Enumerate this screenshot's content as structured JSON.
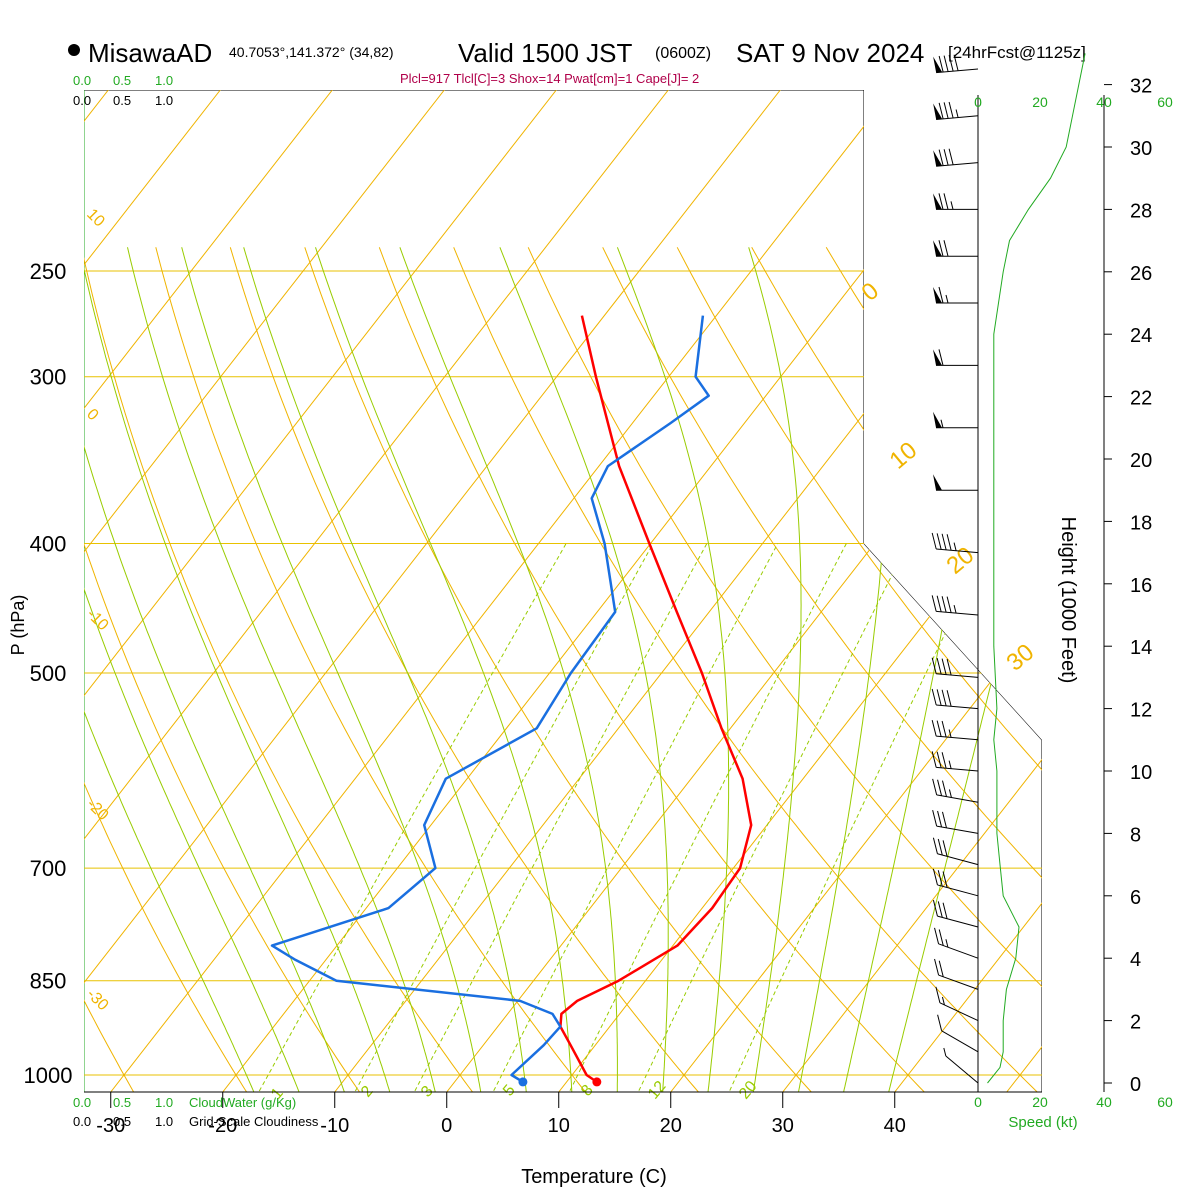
{
  "header": {
    "station": "MisawaAD",
    "coords": "40.7053°,141.372° (34,82)",
    "valid": "Valid 1500 JST",
    "zulu": "(0600Z)",
    "date": "SAT 9 Nov 2024",
    "fcst": "[24hrFcst@1125z]",
    "indices": "Plcl=917 Tlcl[C]=3 Shox=14 Pwat[cm]=1 Cape[J]= 2"
  },
  "colors": {
    "temp": "#ff0000",
    "dew": "#1a6fe0",
    "isotherm": "#f0b400",
    "dry_adiabat": "#f0b400",
    "moist_adiabat": "#99cc00",
    "mixing_ratio": "#99cc00",
    "wind_profile": "#22aa22",
    "isobar": "#e8c200",
    "barb": "#000000"
  },
  "scales": {
    "cloud_top": [
      "0.0",
      "0.5",
      "1.0"
    ],
    "cloud_top_black": [
      "0.0",
      "0.5",
      "1.0"
    ],
    "cloudwater_label": "CloudWater (g/Kg)",
    "gridscale_label": "Grid-Scale Cloudiness",
    "speed_label": "Speed (kt)",
    "speed_ticks": [
      "0",
      "20",
      "40",
      "60"
    ]
  },
  "chart_data": {
    "type": "line",
    "title": "MisawaAD Valid 1500 JST (0600Z) SAT 9 Nov 2024",
    "xlabel": "Temperature (C)",
    "ylabel": "P (hPa)",
    "y2label": "Height (1000 Feet)",
    "x_ticks": [
      -30,
      -20,
      -10,
      0,
      10,
      20,
      30,
      40
    ],
    "pressure_ticks": [
      250,
      300,
      400,
      500,
      700,
      850,
      1000
    ],
    "height_ticks": [
      0,
      2,
      4,
      6,
      8,
      10,
      12,
      14,
      16,
      18,
      20,
      22,
      24,
      26,
      28,
      30,
      32
    ],
    "isotherm_labels": [
      "10",
      "0",
      "-10",
      "-20",
      "-30"
    ],
    "dry_adiabat_labels": [
      "0",
      "10",
      "20",
      "30"
    ],
    "mixing_ratio_labels": [
      "1",
      "2",
      "3",
      "5",
      "8",
      "12",
      "20"
    ],
    "series": [
      {
        "name": "Temperature",
        "points": [
          [
            1012,
            12.7
          ],
          [
            1000,
            11.3
          ],
          [
            950,
            7.8
          ],
          [
            920,
            5.6
          ],
          [
            900,
            4.8
          ],
          [
            880,
            5.3
          ],
          [
            850,
            7.6
          ],
          [
            800,
            10.4
          ],
          [
            750,
            10.9
          ],
          [
            700,
            10.6
          ],
          [
            650,
            8.6
          ],
          [
            600,
            4.6
          ],
          [
            550,
            -0.8
          ],
          [
            500,
            -6.4
          ],
          [
            450,
            -12.9
          ],
          [
            400,
            -20.1
          ],
          [
            350,
            -28.2
          ],
          [
            300,
            -36.5
          ],
          [
            270,
            -42.0
          ]
        ]
      },
      {
        "name": "Dewpoint",
        "points": [
          [
            1012,
            6.1
          ],
          [
            1000,
            4.6
          ],
          [
            950,
            5.4
          ],
          [
            920,
            5.6
          ],
          [
            900,
            4.0
          ],
          [
            880,
            0.2
          ],
          [
            850,
            -17.6
          ],
          [
            820,
            -22.7
          ],
          [
            800,
            -25.8
          ],
          [
            750,
            -18.0
          ],
          [
            700,
            -16.6
          ],
          [
            650,
            -20.6
          ],
          [
            600,
            -21.9
          ],
          [
            550,
            -17.3
          ],
          [
            500,
            -18.1
          ],
          [
            450,
            -18.4
          ],
          [
            400,
            -24.1
          ],
          [
            370,
            -28.4
          ],
          [
            350,
            -29.2
          ],
          [
            325,
            -26.6
          ],
          [
            310,
            -25.1
          ],
          [
            300,
            -27.6
          ],
          [
            270,
            -31.2
          ]
        ]
      }
    ],
    "wind_profile": {
      "name": "Speed (kt)",
      "points": [
        [
          0,
          3
        ],
        [
          0.5,
          7
        ],
        [
          1,
          8
        ],
        [
          2,
          8
        ],
        [
          3,
          9
        ],
        [
          4,
          12
        ],
        [
          5,
          13
        ],
        [
          6,
          8
        ],
        [
          7,
          7
        ],
        [
          8,
          6
        ],
        [
          9,
          6
        ],
        [
          10,
          6
        ],
        [
          11,
          5
        ],
        [
          12,
          6
        ],
        [
          14,
          5
        ],
        [
          16,
          5
        ],
        [
          18,
          5
        ],
        [
          20,
          5
        ],
        [
          22,
          5
        ],
        [
          24,
          5
        ],
        [
          26,
          8
        ],
        [
          27,
          10
        ],
        [
          28,
          16
        ],
        [
          29,
          23
        ],
        [
          30,
          28
        ],
        [
          31,
          30
        ],
        [
          32,
          32
        ],
        [
          33,
          34
        ]
      ]
    },
    "wind_barbs": [
      {
        "h": 0.0,
        "dir": 310,
        "kt": 5
      },
      {
        "h": 1.0,
        "dir": 300,
        "kt": 10
      },
      {
        "h": 2.0,
        "dir": 295,
        "kt": 15
      },
      {
        "h": 3.0,
        "dir": 290,
        "kt": 20
      },
      {
        "h": 4.0,
        "dir": 290,
        "kt": 25
      },
      {
        "h": 5.0,
        "dir": 285,
        "kt": 30
      },
      {
        "h": 6.0,
        "dir": 285,
        "kt": 30
      },
      {
        "h": 7.0,
        "dir": 285,
        "kt": 30
      },
      {
        "h": 8.0,
        "dir": 280,
        "kt": 30
      },
      {
        "h": 9.0,
        "dir": 280,
        "kt": 35
      },
      {
        "h": 10.0,
        "dir": 275,
        "kt": 35
      },
      {
        "h": 11.0,
        "dir": 275,
        "kt": 35
      },
      {
        "h": 12.0,
        "dir": 275,
        "kt": 40
      },
      {
        "h": 13.0,
        "dir": 275,
        "kt": 40
      },
      {
        "h": 15.0,
        "dir": 275,
        "kt": 45
      },
      {
        "h": 17.0,
        "dir": 275,
        "kt": 45
      },
      {
        "h": 19.0,
        "dir": 270,
        "kt": 50
      },
      {
        "h": 21.0,
        "dir": 270,
        "kt": 55
      },
      {
        "h": 23.0,
        "dir": 270,
        "kt": 60
      },
      {
        "h": 25.0,
        "dir": 270,
        "kt": 65
      },
      {
        "h": 26.5,
        "dir": 270,
        "kt": 70
      },
      {
        "h": 28.0,
        "dir": 270,
        "kt": 75
      },
      {
        "h": 29.5,
        "dir": 265,
        "kt": 80
      },
      {
        "h": 31.0,
        "dir": 265,
        "kt": 85
      },
      {
        "h": 32.5,
        "dir": 265,
        "kt": 90
      }
    ]
  }
}
